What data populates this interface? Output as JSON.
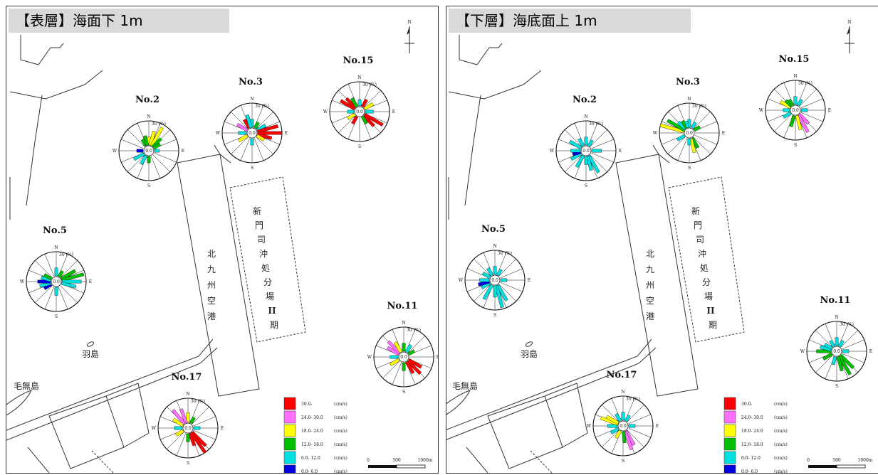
{
  "colors": {
    "bin_0": "#0000e0",
    "bin_1": "#00e0e0",
    "bin_2": "#00c000",
    "bin_3": "#ffff00",
    "bin_4": "#ff70ff",
    "bin_5": "#ff0000"
  },
  "legend": {
    "unit": "(cm/s)",
    "items": [
      {
        "label": "30.0-",
        "color": "#ff0000"
      },
      {
        "label": "24.0- 30.0",
        "color": "#ff70ff"
      },
      {
        "label": "18.0- 24.0",
        "color": "#ffff00"
      },
      {
        "label": "12.0- 18.0",
        "color": "#00c000"
      },
      {
        "label": "6.0- 12.0",
        "color": "#00e0e0"
      },
      {
        "label": "0.0- 6.0",
        "color": "#0000e0"
      }
    ]
  },
  "scale_bar": {
    "labels": [
      "0",
      "500",
      "1000m"
    ]
  },
  "rose_labels": {
    "n": "N",
    "s": "S",
    "e": "E",
    "w": "W",
    "pct": "30 (%)",
    "center": "0.0"
  },
  "places": {
    "airport": [
      "北",
      "九",
      "州",
      "空",
      "港"
    ],
    "disposal": [
      "新",
      "門",
      "司",
      "沖",
      "処",
      "分",
      "場",
      "II",
      "期"
    ],
    "habu": "羽島",
    "kenashi": "毛無島"
  },
  "panels": [
    {
      "title": "【表層】海面下 1m",
      "stations": [
        {
          "name": "No.2",
          "petals": [
            [
              0,
              10,
              "3"
            ],
            [
              15,
              18,
              "3"
            ],
            [
              30,
              26,
              "3"
            ],
            [
              45,
              14,
              "2"
            ],
            [
              60,
              9,
              "2"
            ],
            [
              90,
              6,
              "1"
            ],
            [
              180,
              8,
              "2"
            ],
            [
              210,
              12,
              "1"
            ],
            [
              240,
              14,
              "1"
            ],
            [
              270,
              8,
              "0"
            ],
            [
              330,
              9,
              "2"
            ],
            [
              345,
              12,
              "2"
            ]
          ]
        },
        {
          "name": "No.3",
          "petals": [
            [
              0,
              10,
              "1"
            ],
            [
              30,
              8,
              "2"
            ],
            [
              60,
              12,
              "1"
            ],
            [
              75,
              26,
              "5"
            ],
            [
              90,
              30,
              "5"
            ],
            [
              105,
              18,
              "5"
            ],
            [
              120,
              10,
              "3"
            ],
            [
              180,
              8,
              "1"
            ],
            [
              240,
              12,
              "3"
            ],
            [
              270,
              10,
              "1"
            ],
            [
              300,
              14,
              "4"
            ],
            [
              330,
              12,
              "5"
            ],
            [
              345,
              16,
              "1"
            ]
          ]
        },
        {
          "name": "No.15",
          "petals": [
            [
              0,
              8,
              "1"
            ],
            [
              30,
              10,
              "5"
            ],
            [
              60,
              12,
              "3"
            ],
            [
              90,
              10,
              "1"
            ],
            [
              120,
              26,
              "5"
            ],
            [
              135,
              18,
              "5"
            ],
            [
              150,
              10,
              "2"
            ],
            [
              210,
              10,
              "5"
            ],
            [
              240,
              10,
              "3"
            ],
            [
              270,
              8,
              "1"
            ],
            [
              300,
              20,
              "5"
            ],
            [
              315,
              16,
              "5"
            ],
            [
              330,
              12,
              "2"
            ]
          ]
        },
        {
          "name": "No.5",
          "petals": [
            [
              0,
              10,
              "1"
            ],
            [
              30,
              8,
              "2"
            ],
            [
              60,
              20,
              "2"
            ],
            [
              75,
              28,
              "2"
            ],
            [
              90,
              24,
              "1"
            ],
            [
              105,
              18,
              "1"
            ],
            [
              180,
              10,
              "1"
            ],
            [
              240,
              10,
              "0"
            ],
            [
              255,
              14,
              "1"
            ],
            [
              270,
              16,
              "0"
            ],
            [
              285,
              12,
              "1"
            ],
            [
              300,
              10,
              "2"
            ]
          ]
        },
        {
          "name": "No.11",
          "petals": [
            [
              0,
              10,
              "2"
            ],
            [
              30,
              10,
              "1"
            ],
            [
              60,
              8,
              "2"
            ],
            [
              120,
              18,
              "5"
            ],
            [
              135,
              22,
              "5"
            ],
            [
              150,
              16,
              "5"
            ],
            [
              180,
              10,
              "2"
            ],
            [
              240,
              12,
              "3"
            ],
            [
              270,
              10,
              "1"
            ],
            [
              300,
              16,
              "4"
            ],
            [
              315,
              20,
              "4"
            ],
            [
              330,
              14,
              "3"
            ]
          ]
        },
        {
          "name": "No.17",
          "petals": [
            [
              0,
              12,
              "3"
            ],
            [
              30,
              8,
              "2"
            ],
            [
              90,
              8,
              "1"
            ],
            [
              135,
              24,
              "5"
            ],
            [
              145,
              30,
              "5"
            ],
            [
              160,
              16,
              "5"
            ],
            [
              180,
              10,
              "2"
            ],
            [
              240,
              10,
              "3"
            ],
            [
              270,
              10,
              "1"
            ],
            [
              300,
              14,
              "3"
            ],
            [
              320,
              22,
              "4"
            ],
            [
              340,
              18,
              "4"
            ]
          ]
        }
      ]
    },
    {
      "title": "【下層】海底面上 1m",
      "stations": [
        {
          "name": "No.2",
          "petals": [
            [
              0,
              10,
              "1"
            ],
            [
              30,
              8,
              "1"
            ],
            [
              90,
              12,
              "1"
            ],
            [
              150,
              24,
              "1"
            ],
            [
              165,
              18,
              "1"
            ],
            [
              180,
              10,
              "1"
            ],
            [
              210,
              16,
              "1"
            ],
            [
              240,
              14,
              "1"
            ],
            [
              255,
              10,
              "0"
            ],
            [
              270,
              12,
              "1"
            ],
            [
              300,
              16,
              "1"
            ],
            [
              330,
              10,
              "1"
            ]
          ]
        },
        {
          "name": "No.3",
          "petals": [
            [
              0,
              10,
              "1"
            ],
            [
              30,
              8,
              "1"
            ],
            [
              60,
              8,
              "2"
            ],
            [
              150,
              14,
              "2"
            ],
            [
              165,
              18,
              "3"
            ],
            [
              180,
              8,
              "1"
            ],
            [
              240,
              10,
              "1"
            ],
            [
              285,
              30,
              "3"
            ],
            [
              300,
              24,
              "2"
            ],
            [
              315,
              12,
              "1"
            ],
            [
              330,
              10,
              "2"
            ],
            [
              345,
              8,
              "1"
            ]
          ]
        },
        {
          "name": "No.15",
          "petals": [
            [
              0,
              10,
              "1"
            ],
            [
              30,
              8,
              "1"
            ],
            [
              90,
              8,
              "1"
            ],
            [
              135,
              16,
              "4"
            ],
            [
              150,
              24,
              "4"
            ],
            [
              165,
              18,
              "3"
            ],
            [
              195,
              14,
              "2"
            ],
            [
              240,
              10,
              "1"
            ],
            [
              270,
              8,
              "1"
            ],
            [
              300,
              14,
              "3"
            ],
            [
              315,
              10,
              "2"
            ],
            [
              330,
              8,
              "2"
            ]
          ]
        },
        {
          "name": "No.5",
          "petals": [
            [
              0,
              10,
              "1"
            ],
            [
              30,
              8,
              "1"
            ],
            [
              90,
              8,
              "1"
            ],
            [
              150,
              22,
              "1"
            ],
            [
              165,
              28,
              "1"
            ],
            [
              180,
              14,
              "1"
            ],
            [
              210,
              20,
              "1"
            ],
            [
              240,
              12,
              "1"
            ],
            [
              255,
              14,
              "0"
            ],
            [
              270,
              12,
              "1"
            ],
            [
              300,
              10,
              "1"
            ],
            [
              330,
              10,
              "1"
            ]
          ]
        },
        {
          "name": "No.11",
          "petals": [
            [
              0,
              10,
              "1"
            ],
            [
              30,
              8,
              "1"
            ],
            [
              90,
              8,
              "1"
            ],
            [
              135,
              22,
              "2"
            ],
            [
              150,
              26,
              "2"
            ],
            [
              165,
              18,
              "2"
            ],
            [
              195,
              10,
              "1"
            ],
            [
              240,
              12,
              "2"
            ],
            [
              270,
              18,
              "2"
            ],
            [
              285,
              14,
              "1"
            ],
            [
              300,
              10,
              "1"
            ],
            [
              330,
              8,
              "1"
            ]
          ]
        },
        {
          "name": "No.17",
          "petals": [
            [
              0,
              10,
              "1"
            ],
            [
              30,
              8,
              "1"
            ],
            [
              90,
              8,
              "1"
            ],
            [
              150,
              20,
              "4"
            ],
            [
              160,
              24,
              "4"
            ],
            [
              175,
              14,
              "2"
            ],
            [
              210,
              10,
              "3"
            ],
            [
              240,
              10,
              "1"
            ],
            [
              270,
              12,
              "1"
            ],
            [
              290,
              22,
              "3"
            ],
            [
              300,
              16,
              "3"
            ],
            [
              330,
              10,
              "1"
            ]
          ]
        }
      ]
    }
  ]
}
